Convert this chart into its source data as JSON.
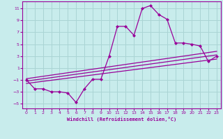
{
  "title": "",
  "xlabel": "Windchill (Refroidissement éolien,°C)",
  "bg_color": "#c8ecec",
  "grid_color": "#aad4d4",
  "line_color": "#990099",
  "xlim": [
    -0.5,
    23.5
  ],
  "ylim": [
    -5.8,
    12.2
  ],
  "xticks": [
    0,
    1,
    2,
    3,
    4,
    5,
    6,
    7,
    8,
    9,
    10,
    11,
    12,
    13,
    14,
    15,
    16,
    17,
    18,
    19,
    20,
    21,
    22,
    23
  ],
  "yticks": [
    -5,
    -3,
    -1,
    1,
    3,
    5,
    7,
    9,
    11
  ],
  "main_x": [
    0,
    1,
    2,
    3,
    4,
    5,
    6,
    7,
    8,
    9,
    10,
    11,
    12,
    13,
    14,
    15,
    16,
    17,
    18,
    19,
    20,
    21,
    22,
    23
  ],
  "main_y": [
    -1.0,
    -2.5,
    -2.5,
    -3.0,
    -3.0,
    -3.2,
    -4.8,
    -2.5,
    -0.9,
    -0.9,
    3.0,
    8.0,
    8.0,
    6.5,
    11.0,
    11.5,
    10.0,
    9.2,
    5.2,
    5.2,
    5.0,
    4.7,
    2.1,
    3.0
  ],
  "line1_x": [
    0,
    23
  ],
  "line1_y": [
    -1.2,
    3.2
  ],
  "line2_x": [
    0,
    23
  ],
  "line2_y": [
    -1.6,
    2.5
  ],
  "line3_x": [
    0,
    23
  ],
  "line3_y": [
    -0.8,
    3.8
  ]
}
